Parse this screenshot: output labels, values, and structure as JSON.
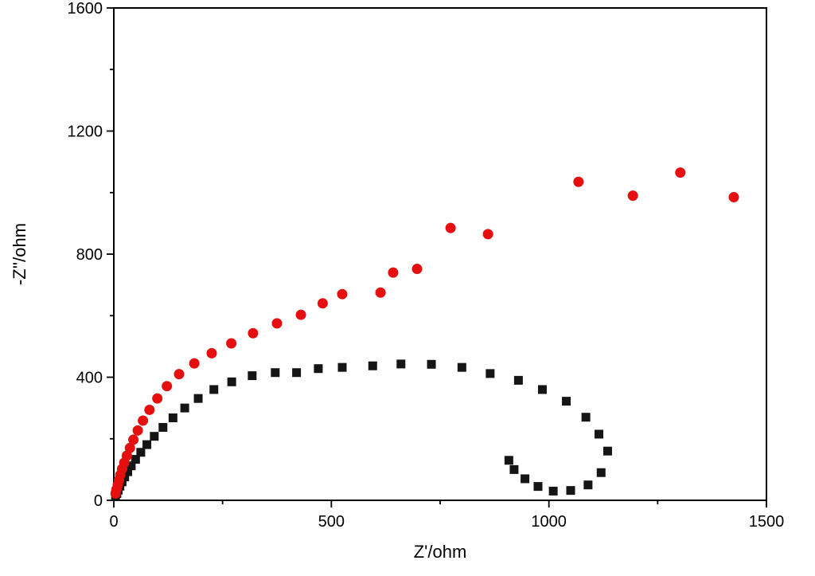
{
  "figure": {
    "background": "#ffffff",
    "frame_color": "#000000"
  },
  "chart_data": {
    "type": "scatter",
    "title": "",
    "xlabel": "Z'/ohm",
    "ylabel": "-Z''/ohm",
    "xlim": [
      0,
      1500
    ],
    "ylim": [
      0,
      1600
    ],
    "x_major_ticks": [
      0,
      500,
      1000,
      1500
    ],
    "y_major_ticks": [
      0,
      400,
      800,
      1200,
      1600
    ],
    "x_minor_step": 250,
    "y_minor_step": 200,
    "grid": false,
    "legend_position": "none",
    "series": [
      {
        "name": "black-squares",
        "marker": "square",
        "color": "#151515",
        "size": 11,
        "points": [
          [
            4,
            12
          ],
          [
            7,
            22
          ],
          [
            10,
            33
          ],
          [
            14,
            46
          ],
          [
            19,
            60
          ],
          [
            25,
            76
          ],
          [
            32,
            93
          ],
          [
            40,
            112
          ],
          [
            50,
            133
          ],
          [
            62,
            156
          ],
          [
            76,
            181
          ],
          [
            93,
            208
          ],
          [
            113,
            237
          ],
          [
            136,
            268
          ],
          [
            163,
            300
          ],
          [
            194,
            331
          ],
          [
            230,
            360
          ],
          [
            271,
            385
          ],
          [
            318,
            405
          ],
          [
            371,
            415
          ],
          [
            420,
            415
          ],
          [
            470,
            428
          ],
          [
            525,
            432
          ],
          [
            595,
            437
          ],
          [
            660,
            443
          ],
          [
            730,
            442
          ],
          [
            800,
            432
          ],
          [
            865,
            412
          ],
          [
            930,
            390
          ],
          [
            985,
            360
          ],
          [
            1040,
            322
          ],
          [
            1085,
            270
          ],
          [
            1115,
            215
          ],
          [
            1135,
            160
          ],
          [
            1120,
            90
          ],
          [
            1090,
            50
          ],
          [
            1050,
            32
          ],
          [
            1010,
            30
          ],
          [
            975,
            45
          ],
          [
            945,
            70
          ],
          [
            920,
            100
          ],
          [
            908,
            130
          ]
        ]
      },
      {
        "name": "red-circles",
        "marker": "circle",
        "color": "#e60f0f",
        "size": 13,
        "points": [
          [
            4,
            22
          ],
          [
            6,
            35
          ],
          [
            9,
            50
          ],
          [
            12,
            66
          ],
          [
            15,
            83
          ],
          [
            19,
            102
          ],
          [
            24,
            122
          ],
          [
            30,
            145
          ],
          [
            37,
            170
          ],
          [
            45,
            197
          ],
          [
            55,
            227
          ],
          [
            67,
            259
          ],
          [
            82,
            294
          ],
          [
            100,
            331
          ],
          [
            122,
            371
          ],
          [
            150,
            410
          ],
          [
            185,
            445
          ],
          [
            225,
            478
          ],
          [
            270,
            510
          ],
          [
            320,
            543
          ],
          [
            375,
            575
          ],
          [
            430,
            603
          ],
          [
            480,
            640
          ],
          [
            525,
            670
          ],
          [
            613,
            675
          ],
          [
            642,
            740
          ],
          [
            697,
            752
          ],
          [
            774,
            885
          ],
          [
            860,
            865
          ],
          [
            1068,
            1035
          ],
          [
            1193,
            990
          ],
          [
            1302,
            1065
          ],
          [
            1425,
            985
          ]
        ]
      }
    ]
  }
}
